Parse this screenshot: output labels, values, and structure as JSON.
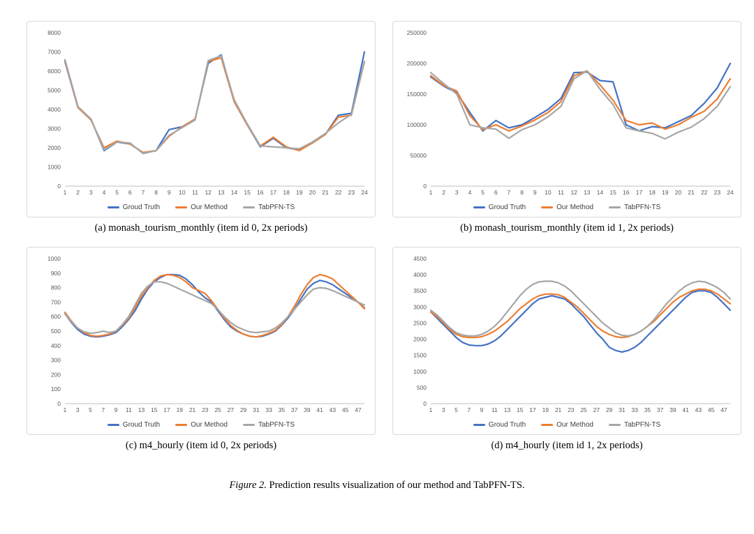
{
  "figure": {
    "caption_prefix": "Figure 2.",
    "caption_text": "Prediction results visualization of our method and TabPFN-TS."
  },
  "colors": {
    "ground_truth": "#4472c4",
    "our_method": "#ed7d31",
    "tabpfn_ts": "#a6a6a6",
    "axis_line": "#bfbfbf",
    "tick_text": "#595959"
  },
  "chart_data": [
    {
      "type": "line",
      "caption": "(a)  monash_tourism_monthly (item id 0, 2x periods)",
      "xlabel": "",
      "ylabel": "",
      "grid": false,
      "legend_position": "bottom",
      "x": [
        1,
        2,
        3,
        4,
        5,
        6,
        7,
        8,
        9,
        10,
        11,
        12,
        13,
        14,
        15,
        16,
        17,
        18,
        19,
        20,
        21,
        22,
        23,
        24
      ],
      "x_tick_step": 1,
      "ylim": [
        0,
        8000
      ],
      "y_tick_step": 1000,
      "series": [
        {
          "name": "Groud Truth",
          "color": "#4472c4",
          "values": [
            6500,
            4100,
            3500,
            1850,
            2300,
            2200,
            1750,
            1850,
            2950,
            3100,
            3500,
            6400,
            6850,
            4400,
            3200,
            2050,
            2500,
            2000,
            1900,
            2250,
            2700,
            3700,
            3800,
            7000
          ]
        },
        {
          "name": "Our Method",
          "color": "#ed7d31",
          "values": [
            6550,
            4100,
            3450,
            2000,
            2350,
            2200,
            1750,
            1850,
            2600,
            3100,
            3500,
            6500,
            6700,
            4400,
            3200,
            2100,
            2550,
            2050,
            1850,
            2250,
            2700,
            3600,
            3700,
            6500
          ]
        },
        {
          "name": "TabPFN-TS",
          "color": "#a6a6a6",
          "values": [
            6600,
            4150,
            3500,
            1900,
            2300,
            2250,
            1700,
            1850,
            2650,
            3050,
            3450,
            6550,
            6800,
            4500,
            3250,
            2100,
            2050,
            2000,
            1950,
            2300,
            2750,
            3300,
            3750,
            6500
          ]
        }
      ]
    },
    {
      "type": "line",
      "caption": "(b)  monash_tourism_monthly (item id 1, 2x periods)",
      "xlabel": "",
      "ylabel": "",
      "grid": false,
      "legend_position": "bottom",
      "x": [
        1,
        2,
        3,
        4,
        5,
        6,
        7,
        8,
        9,
        10,
        11,
        12,
        13,
        14,
        15,
        16,
        17,
        18,
        19,
        20,
        21,
        22,
        23,
        24
      ],
      "x_tick_step": 1,
      "ylim": [
        0,
        250000
      ],
      "y_tick_step": 50000,
      "series": [
        {
          "name": "Groud Truth",
          "color": "#4472c4",
          "values": [
            178000,
            163000,
            152000,
            120000,
            90000,
            107000,
            95000,
            100000,
            112000,
            125000,
            143000,
            185000,
            186000,
            172000,
            170000,
            100000,
            90000,
            97000,
            95000,
            105000,
            115000,
            135000,
            160000,
            200000
          ]
        },
        {
          "name": "Our Method",
          "color": "#ed7d31",
          "values": [
            180000,
            164000,
            155000,
            115000,
            92000,
            100000,
            90000,
            98000,
            108000,
            120000,
            138000,
            180000,
            188000,
            165000,
            140000,
            107000,
            100000,
            103000,
            93000,
            100000,
            112000,
            122000,
            142000,
            175000
          ]
        },
        {
          "name": "TabPFN-TS",
          "color": "#a6a6a6",
          "values": [
            185000,
            167000,
            150000,
            100000,
            95000,
            93000,
            78000,
            92000,
            100000,
            113000,
            130000,
            175000,
            188000,
            158000,
            133000,
            95000,
            90000,
            86000,
            77000,
            88000,
            96000,
            110000,
            130000,
            162000
          ]
        }
      ]
    },
    {
      "type": "line",
      "caption": "(c)  m4_hourly (item id 0, 2x periods)",
      "xlabel": "",
      "ylabel": "",
      "grid": false,
      "legend_position": "bottom",
      "x": [
        1,
        2,
        3,
        4,
        5,
        6,
        7,
        8,
        9,
        10,
        11,
        12,
        13,
        14,
        15,
        16,
        17,
        18,
        19,
        20,
        21,
        22,
        23,
        24,
        25,
        26,
        27,
        28,
        29,
        30,
        31,
        32,
        33,
        34,
        35,
        36,
        37,
        38,
        39,
        40,
        41,
        42,
        43,
        44,
        45,
        46,
        47,
        48
      ],
      "x_tick_step": 2,
      "ylim": [
        0,
        1000
      ],
      "y_tick_step": 100,
      "series": [
        {
          "name": "Groud Truth",
          "color": "#4472c4",
          "values": [
            620,
            560,
            510,
            480,
            465,
            460,
            465,
            475,
            490,
            530,
            580,
            640,
            720,
            790,
            840,
            870,
            890,
            890,
            885,
            860,
            820,
            770,
            730,
            700,
            640,
            580,
            530,
            500,
            480,
            465,
            460,
            465,
            480,
            500,
            540,
            590,
            650,
            720,
            790,
            830,
            850,
            840,
            820,
            790,
            760,
            730,
            700,
            660
          ]
        },
        {
          "name": "Our Method",
          "color": "#ed7d31",
          "values": [
            630,
            570,
            520,
            490,
            470,
            465,
            470,
            480,
            500,
            540,
            590,
            660,
            740,
            800,
            850,
            880,
            890,
            885,
            870,
            840,
            800,
            780,
            760,
            710,
            650,
            590,
            540,
            505,
            480,
            465,
            460,
            470,
            485,
            505,
            545,
            600,
            670,
            750,
            820,
            870,
            890,
            880,
            860,
            820,
            780,
            740,
            700,
            655
          ]
        },
        {
          "name": "TabPFN-TS",
          "color": "#a6a6a6",
          "values": [
            620,
            565,
            520,
            495,
            485,
            490,
            500,
            490,
            500,
            545,
            600,
            680,
            760,
            810,
            840,
            840,
            830,
            810,
            790,
            770,
            750,
            730,
            710,
            690,
            650,
            600,
            560,
            530,
            510,
            495,
            490,
            495,
            500,
            520,
            555,
            600,
            650,
            700,
            750,
            790,
            800,
            795,
            780,
            760,
            740,
            720,
            700,
            680
          ]
        }
      ]
    },
    {
      "type": "line",
      "caption": "(d)  m4_hourly (item id 1, 2x periods)",
      "xlabel": "",
      "ylabel": "",
      "grid": false,
      "legend_position": "bottom",
      "x": [
        1,
        2,
        3,
        4,
        5,
        6,
        7,
        8,
        9,
        10,
        11,
        12,
        13,
        14,
        15,
        16,
        17,
        18,
        19,
        20,
        21,
        22,
        23,
        24,
        25,
        26,
        27,
        28,
        29,
        30,
        31,
        32,
        33,
        34,
        35,
        36,
        37,
        38,
        39,
        40,
        41,
        42,
        43,
        44,
        45,
        46,
        47,
        48
      ],
      "x_tick_step": 2,
      "ylim": [
        0,
        4500
      ],
      "y_tick_step": 500,
      "series": [
        {
          "name": "Groud Truth",
          "color": "#4472c4",
          "values": [
            2850,
            2650,
            2450,
            2250,
            2050,
            1900,
            1820,
            1800,
            1800,
            1850,
            1950,
            2100,
            2300,
            2500,
            2700,
            2900,
            3100,
            3250,
            3300,
            3350,
            3300,
            3250,
            3100,
            2900,
            2700,
            2450,
            2200,
            2000,
            1750,
            1650,
            1600,
            1650,
            1750,
            1900,
            2100,
            2300,
            2500,
            2700,
            2900,
            3100,
            3300,
            3450,
            3500,
            3500,
            3450,
            3300,
            3100,
            2900
          ]
        },
        {
          "name": "Our Method",
          "color": "#ed7d31",
          "values": [
            2850,
            2700,
            2500,
            2300,
            2150,
            2080,
            2050,
            2050,
            2080,
            2150,
            2250,
            2400,
            2550,
            2750,
            2950,
            3100,
            3250,
            3350,
            3400,
            3400,
            3380,
            3300,
            3150,
            3000,
            2800,
            2600,
            2400,
            2250,
            2150,
            2080,
            2050,
            2080,
            2150,
            2250,
            2400,
            2550,
            2750,
            2950,
            3150,
            3300,
            3400,
            3500,
            3550,
            3550,
            3500,
            3400,
            3250,
            3100
          ]
        },
        {
          "name": "TabPFN-TS",
          "color": "#a6a6a6",
          "values": [
            2900,
            2750,
            2550,
            2350,
            2200,
            2130,
            2100,
            2100,
            2150,
            2250,
            2400,
            2600,
            2850,
            3100,
            3350,
            3550,
            3700,
            3780,
            3800,
            3800,
            3750,
            3650,
            3500,
            3300,
            3100,
            2900,
            2700,
            2500,
            2350,
            2200,
            2120,
            2100,
            2150,
            2250,
            2400,
            2600,
            2850,
            3100,
            3300,
            3500,
            3650,
            3750,
            3800,
            3780,
            3700,
            3600,
            3450,
            3250
          ]
        }
      ]
    }
  ]
}
